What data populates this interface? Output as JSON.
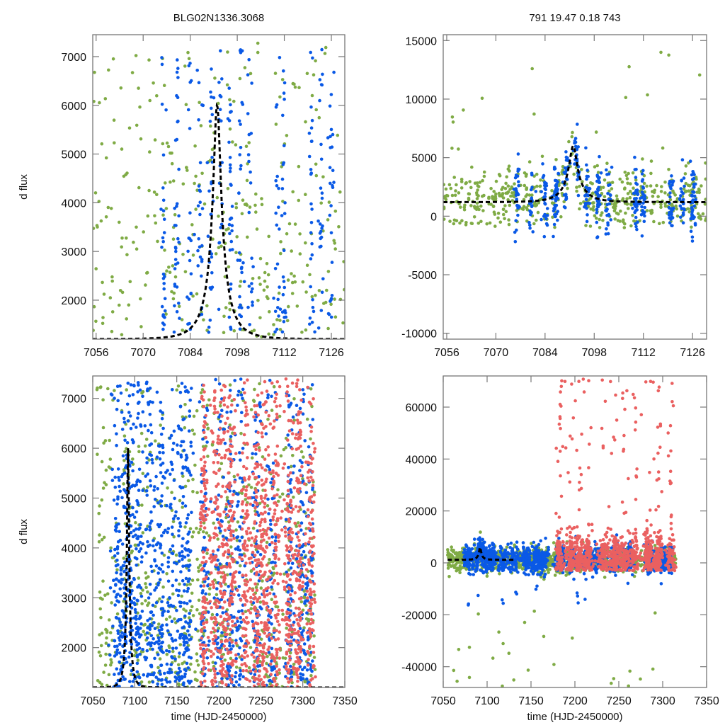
{
  "figure": {
    "title_left": "BLG02N1336.3068",
    "title_right": "791  19.47  0.18  743",
    "colors": {
      "green": "#7fab45",
      "blue": "#0a59e6",
      "red": "#ea6060",
      "model": "#000000",
      "frame": "#777777"
    }
  },
  "chart_data": [
    {
      "id": "top-left",
      "type": "scatter",
      "title": "BLG02N1336.3068",
      "xlabel": "",
      "ylabel": "d flux",
      "xlim": [
        7055,
        7130
      ],
      "ylim": [
        1200,
        7450
      ],
      "xticks": [
        7056,
        7070,
        7084,
        7098,
        7112,
        7126
      ],
      "yticks": [
        2000,
        3000,
        4000,
        5000,
        6000,
        7000
      ],
      "grid": false,
      "legend": "none",
      "model": {
        "type": "microlensing-fit",
        "peak_x": 7092,
        "peak_y": 6000,
        "baseline": 1200,
        "style": "dashed"
      },
      "series": [
        {
          "name": "green",
          "color": "#7fab45",
          "x_range": [
            7055,
            7130
          ],
          "y_range": [
            1200,
            7300
          ],
          "count": 320,
          "concentration": "peak around 7088-7096, scattered throughout"
        },
        {
          "name": "blue",
          "color": "#0a59e6",
          "x_range": [
            7067,
            7128
          ],
          "y_range": [
            1300,
            7300
          ],
          "count": 360,
          "concentration": "vertical clumps at 7076,7080,7084-7102,7110-7113,7120-7127"
        }
      ]
    },
    {
      "id": "top-right",
      "type": "scatter",
      "title": "791  19.47  0.18  743",
      "xlabel": "",
      "ylabel": "",
      "xlim": [
        7055,
        7130
      ],
      "ylim": [
        -10500,
        15500
      ],
      "xticks": [
        7056,
        7070,
        7084,
        7098,
        7112,
        7126
      ],
      "yticks": [
        -10000,
        -5000,
        0,
        5000,
        10000,
        15000
      ],
      "grid": false,
      "legend": "none",
      "model": {
        "type": "microlensing-fit",
        "peak_x": 7092,
        "peak_y": 6000,
        "baseline": 1200,
        "style": "dashed"
      },
      "series": [
        {
          "name": "green",
          "color": "#7fab45",
          "x_range": [
            7055,
            7130
          ],
          "y_range": [
            -1000,
            15300
          ],
          "count": 520
        },
        {
          "name": "blue",
          "color": "#0a59e6",
          "x_range": [
            7074,
            7128
          ],
          "y_range": [
            -2600,
            14200
          ],
          "count": 420
        }
      ]
    },
    {
      "id": "bottom-left",
      "type": "scatter",
      "title": "",
      "xlabel": "time (HJD-2450000)",
      "ylabel": "d flux",
      "xlim": [
        7050,
        7350
      ],
      "ylim": [
        1200,
        7450
      ],
      "xticks": [
        7050,
        7100,
        7150,
        7200,
        7250,
        7300,
        7350
      ],
      "yticks": [
        2000,
        3000,
        4000,
        5000,
        6000,
        7000
      ],
      "grid": false,
      "legend": "none",
      "model": {
        "type": "microlensing-fit",
        "peak_x": 7092,
        "peak_y": 6000,
        "baseline": 1200,
        "style": "dashed"
      },
      "series": [
        {
          "name": "green",
          "color": "#7fab45",
          "x_range": [
            7055,
            7315
          ],
          "y_range": [
            1200,
            7300
          ],
          "count": 700
        },
        {
          "name": "blue",
          "color": "#0a59e6",
          "x_range": [
            7068,
            7312
          ],
          "y_range": [
            1200,
            7400
          ],
          "count": 1500
        },
        {
          "name": "red",
          "color": "#ea6060",
          "x_range": [
            7178,
            7315
          ],
          "y_range": [
            1200,
            7400
          ],
          "count": 1300
        }
      ]
    },
    {
      "id": "bottom-right",
      "type": "scatter",
      "title": "",
      "xlabel": "time (HJD-2450000)",
      "ylabel": "",
      "xlim": [
        7050,
        7350
      ],
      "ylim": [
        -48000,
        72000
      ],
      "xticks": [
        7050,
        7100,
        7150,
        7200,
        7250,
        7300,
        7350
      ],
      "yticks": [
        -40000,
        -20000,
        0,
        20000,
        40000,
        60000
      ],
      "grid": false,
      "legend": "none",
      "model": {
        "type": "microlensing-fit",
        "peak_x": 7092,
        "peak_y": 6000,
        "baseline": 1200,
        "style": "dashed",
        "x_range": [
          7055,
          7130
        ]
      },
      "series": [
        {
          "name": "green",
          "color": "#7fab45",
          "x_range": [
            7055,
            7315
          ],
          "y_range": [
            -48000,
            15000
          ],
          "count": 900
        },
        {
          "name": "blue",
          "color": "#0a59e6",
          "x_range": [
            7068,
            7312
          ],
          "y_range": [
            -16500,
            32000
          ],
          "count": 1400
        },
        {
          "name": "red",
          "color": "#ea6060",
          "x_range": [
            7178,
            7315
          ],
          "y_range": [
            -3000,
            71500
          ],
          "count": 1300
        }
      ]
    }
  ]
}
